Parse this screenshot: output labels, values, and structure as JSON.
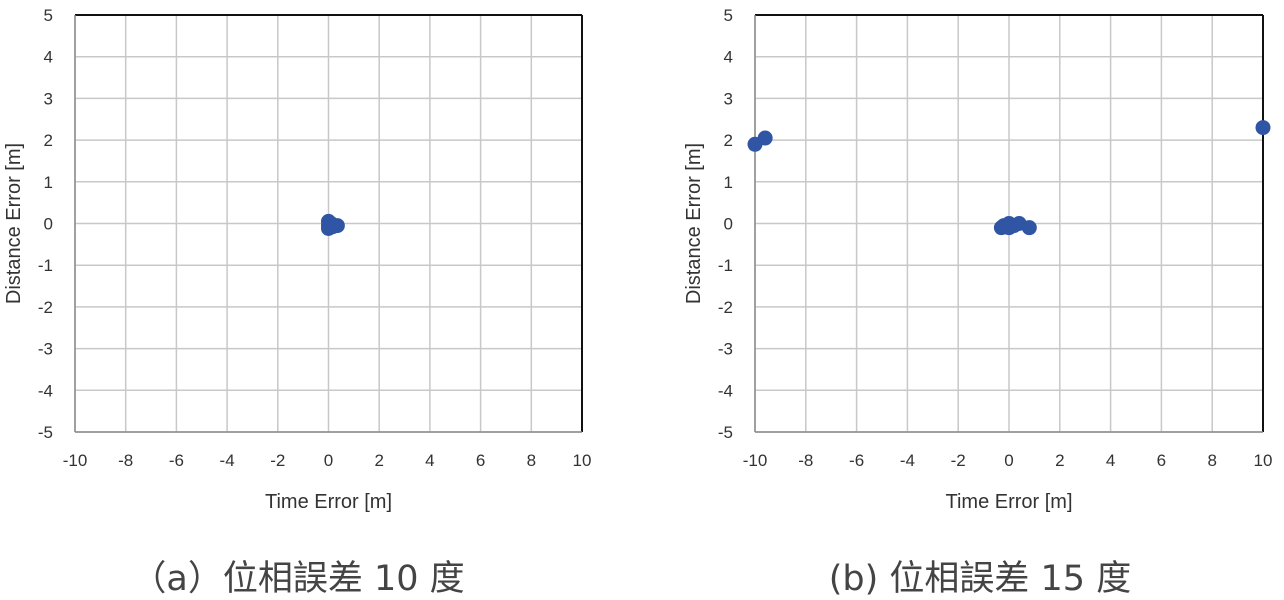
{
  "chart_data": [
    {
      "type": "scatter",
      "xlabel": "Time Error [m]",
      "ylabel": "Distance Error [m]",
      "xlim": [
        -10,
        10
      ],
      "ylim": [
        -5,
        5
      ],
      "x_ticks": [
        "-10",
        "-8",
        "-6",
        "-4",
        "-2",
        "0",
        "2",
        "4",
        "6",
        "8",
        "10"
      ],
      "y_ticks": [
        "5",
        "4",
        "3",
        "2",
        "1",
        "0",
        "-1",
        "-2",
        "-3",
        "-4",
        "-5"
      ],
      "grid": true,
      "marker_color": "#2f55a4",
      "points": [
        {
          "x": 0.0,
          "y": 0.05
        },
        {
          "x": 0.0,
          "y": -0.05
        },
        {
          "x": 0.0,
          "y": -0.12
        },
        {
          "x": 0.1,
          "y": 0.0
        },
        {
          "x": 0.15,
          "y": -0.08
        },
        {
          "x": 0.35,
          "y": -0.05
        }
      ],
      "caption": "（a）位相誤差 10 度"
    },
    {
      "type": "scatter",
      "xlabel": "Time Error [m]",
      "ylabel": "Distance Error [m]",
      "xlim": [
        -10,
        10
      ],
      "ylim": [
        -5,
        5
      ],
      "x_ticks": [
        "-10",
        "-8",
        "-6",
        "-4",
        "-2",
        "0",
        "2",
        "4",
        "6",
        "8",
        "10"
      ],
      "y_ticks": [
        "5",
        "4",
        "3",
        "2",
        "1",
        "0",
        "-1",
        "-2",
        "-3",
        "-4",
        "-5"
      ],
      "grid": true,
      "marker_color": "#2f55a4",
      "points": [
        {
          "x": -10.0,
          "y": 1.9
        },
        {
          "x": -9.6,
          "y": 2.05
        },
        {
          "x": -0.3,
          "y": -0.1
        },
        {
          "x": -0.2,
          "y": -0.05
        },
        {
          "x": 0.0,
          "y": -0.1
        },
        {
          "x": 0.0,
          "y": 0.0
        },
        {
          "x": 0.2,
          "y": -0.05
        },
        {
          "x": 0.4,
          "y": 0.0
        },
        {
          "x": 0.8,
          "y": -0.1
        },
        {
          "x": 10.0,
          "y": 2.3
        }
      ],
      "caption": "(b) 位相誤差 15 度"
    }
  ]
}
